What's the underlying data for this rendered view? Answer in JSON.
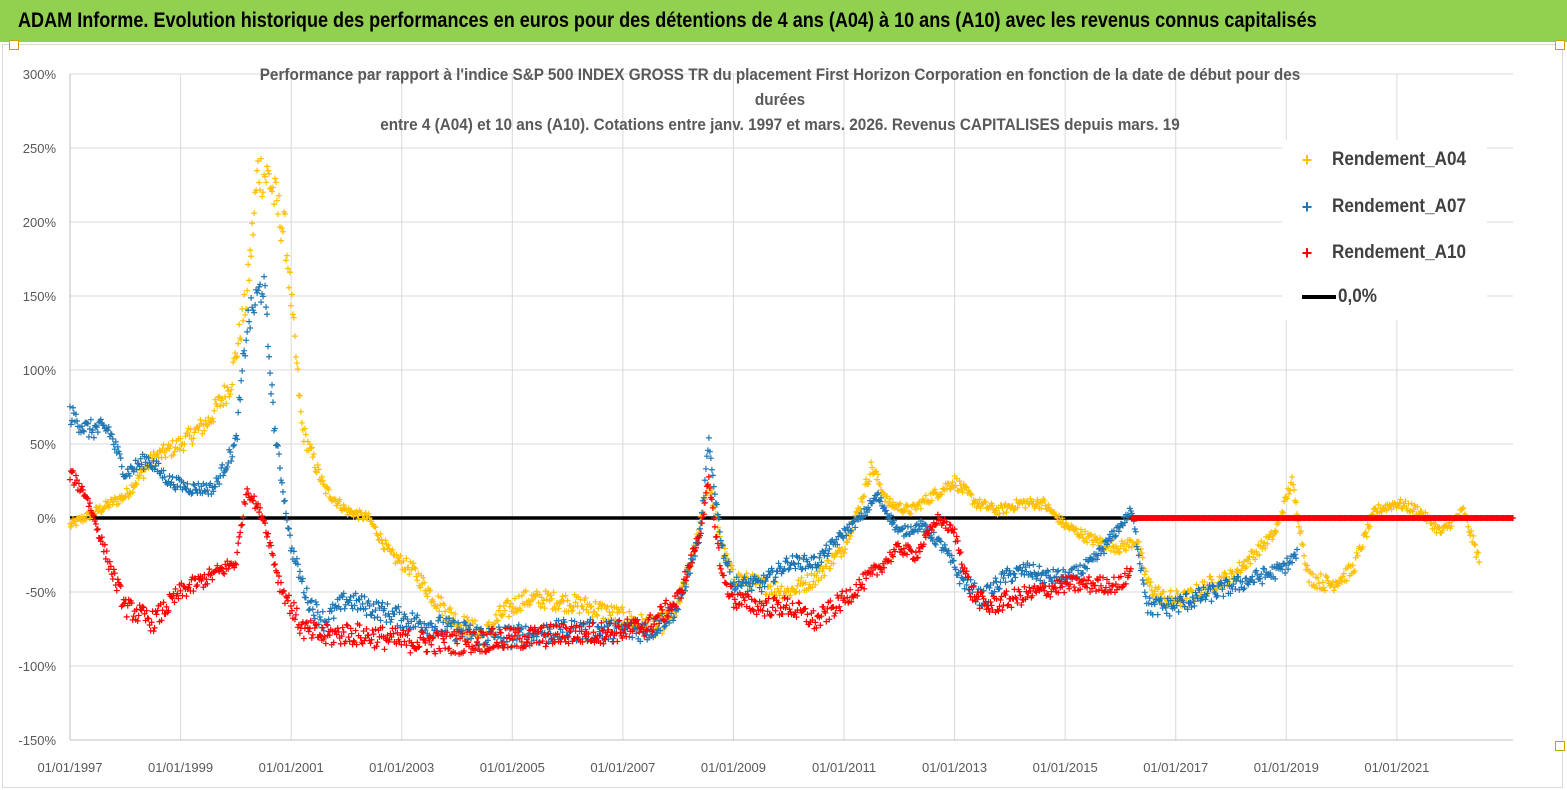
{
  "banner": {
    "title": "ADAM Informe. Evolution historique des performances en euros pour des détentions de 4 ans (A04) à 10 ans (A10) avec les revenus connus capitalisés"
  },
  "chart_data": {
    "type": "scatter",
    "title_lines": [
      "Performance par rapport à l'indice S&P 500 INDEX GROSS TR  du placement First Horizon Corporation en fonction de la date de début pour des",
      "durées",
      "entre 4 (A04) et 10 ans (A10). Cotations entre janv. 1997 et mars. 2026. Revenus CAPITALISES depuis mars. 19"
    ],
    "xlim": [
      1997.0,
      2023.1
    ],
    "ylim": [
      -150,
      300
    ],
    "x_ticks": [
      "01/01/1997",
      "01/01/1999",
      "01/01/2001",
      "01/01/2003",
      "01/01/2005",
      "01/01/2007",
      "01/01/2009",
      "01/01/2011",
      "01/01/2013",
      "01/01/2015",
      "01/01/2017",
      "01/01/2019",
      "01/01/2021"
    ],
    "y_ticks": [
      "300%",
      "250%",
      "200%",
      "150%",
      "100%",
      "50%",
      "0%",
      "-50%",
      "-100%",
      "-150%"
    ],
    "y_tick_values": [
      300,
      250,
      200,
      150,
      100,
      50,
      0,
      -50,
      -100,
      -150
    ],
    "series": [
      {
        "name": "Rendement_A04",
        "color": "#ffc000",
        "x": [
          1997.0,
          1997.5,
          1998.0,
          1998.5,
          1999.0,
          1999.5,
          1999.9,
          2000.2,
          2000.4,
          2000.6,
          2000.9,
          2001.2,
          2001.6,
          2002.0,
          2002.4,
          2002.8,
          2003.2,
          2003.6,
          2004.0,
          2004.5,
          2004.8,
          2005.2,
          2005.6,
          2006.0,
          2006.4,
          2006.8,
          2007.2,
          2007.6,
          2008.0,
          2008.3,
          2008.55,
          2008.8,
          2009.0,
          2009.5,
          2010.0,
          2010.5,
          2011.0,
          2011.3,
          2011.5,
          2011.8,
          2012.2,
          2012.6,
          2013.0,
          2013.4,
          2013.8,
          2014.2,
          2014.6,
          2015.0,
          2015.5,
          2016.0,
          2016.3,
          2016.5,
          2016.8,
          2017.2,
          2017.6,
          2018.0,
          2018.4,
          2018.8,
          2019.1,
          2019.4,
          2019.8,
          2020.2,
          2020.6,
          2021.0,
          2021.4,
          2021.8,
          2022.2,
          2022.5
        ],
        "values": [
          -5,
          5,
          15,
          40,
          50,
          65,
          90,
          150,
          235,
          230,
          190,
          60,
          20,
          5,
          0,
          -25,
          -35,
          -55,
          -70,
          -80,
          -65,
          -55,
          -55,
          -57,
          -60,
          -65,
          -70,
          -75,
          -60,
          -20,
          25,
          -20,
          -40,
          -45,
          -50,
          -40,
          -20,
          10,
          35,
          10,
          5,
          15,
          25,
          10,
          5,
          10,
          10,
          -5,
          -15,
          -20,
          -15,
          -45,
          -55,
          -55,
          -45,
          -40,
          -25,
          -10,
          25,
          -40,
          -45,
          -35,
          5,
          10,
          5,
          -10,
          5,
          -30
        ]
      },
      {
        "name": "Rendement_A07",
        "color": "#1f77b4",
        "x": [
          1997.0,
          1997.3,
          1997.7,
          1998.0,
          1998.4,
          1998.8,
          1999.2,
          1999.6,
          2000.0,
          2000.2,
          2000.5,
          2000.7,
          2001.0,
          2001.3,
          2001.6,
          2002.0,
          2002.4,
          2002.8,
          2003.2,
          2003.6,
          2004.0,
          2004.5,
          2005.0,
          2005.5,
          2006.0,
          2006.5,
          2007.0,
          2007.5,
          2008.0,
          2008.4,
          2008.55,
          2008.8,
          2009.0,
          2009.5,
          2010.0,
          2010.5,
          2011.0,
          2011.3,
          2011.6,
          2012.0,
          2012.4,
          2012.8,
          2013.1,
          2013.5,
          2013.9,
          2014.3,
          2014.7,
          2015.1,
          2015.5,
          2015.9,
          2016.2,
          2016.5,
          2016.9,
          2017.3,
          2017.7,
          2018.1,
          2018.5,
          2018.9,
          2019.2
        ],
        "values": [
          70,
          60,
          60,
          30,
          40,
          25,
          20,
          20,
          50,
          130,
          160,
          60,
          -20,
          -55,
          -70,
          -55,
          -60,
          -65,
          -70,
          -73,
          -76,
          -80,
          -80,
          -78,
          -76,
          -76,
          -76,
          -76,
          -60,
          -10,
          50,
          -20,
          -45,
          -45,
          -30,
          -30,
          -10,
          0,
          15,
          -10,
          -5,
          -20,
          -40,
          -55,
          -40,
          -35,
          -40,
          -40,
          -30,
          -10,
          5,
          -60,
          -60,
          -55,
          -50,
          -45,
          -40,
          -35,
          -25
        ]
      },
      {
        "name": "Rendement_A10",
        "color": "#ff0000",
        "x": [
          1997.0,
          1997.3,
          1997.7,
          1998.0,
          1998.5,
          1999.0,
          1999.5,
          2000.0,
          2000.2,
          2000.5,
          2000.8,
          2001.2,
          2001.6,
          2002.0,
          2002.5,
          2003.0,
          2003.5,
          2004.0,
          2004.5,
          2005.0,
          2005.5,
          2006.0,
          2006.5,
          2007.0,
          2007.5,
          2008.0,
          2008.4,
          2008.55,
          2008.8,
          2009.0,
          2009.5,
          2010.0,
          2010.5,
          2011.0,
          2011.3,
          2011.6,
          2012.0,
          2012.3,
          2012.7,
          2013.0,
          2013.3,
          2013.6,
          2014.0,
          2014.5,
          2015.0,
          2015.5,
          2016.0,
          2016.2
        ],
        "values": [
          30,
          15,
          -30,
          -60,
          -70,
          -50,
          -40,
          -30,
          20,
          0,
          -45,
          -75,
          -80,
          -78,
          -80,
          -83,
          -84,
          -84,
          -83,
          -82,
          -80,
          -78,
          -78,
          -76,
          -72,
          -55,
          -10,
          25,
          -40,
          -55,
          -60,
          -60,
          -70,
          -55,
          -45,
          -35,
          -20,
          -25,
          0,
          -10,
          -50,
          -60,
          -55,
          -50,
          -45,
          -45,
          -45,
          -35
        ]
      },
      {
        "name": "0,0%",
        "color": "#000000",
        "x": [
          1997.0,
          2023.1
        ],
        "values": [
          0,
          0
        ]
      }
    ],
    "extra_red_flat": {
      "x_start": 2016.2,
      "x_end": 2023.1,
      "value": 0
    },
    "legend": [
      {
        "label": "Rendement_A04",
        "symbol": "+",
        "color": "#ffc000"
      },
      {
        "label": "Rendement_A07",
        "symbol": "+",
        "color": "#1f77b4"
      },
      {
        "label": "Rendement_A10",
        "symbol": "+",
        "color": "#ff0000"
      },
      {
        "label": "0,0%",
        "symbol": "line",
        "color": "#000000"
      }
    ],
    "legend_position": "top-right",
    "grid": true
  }
}
